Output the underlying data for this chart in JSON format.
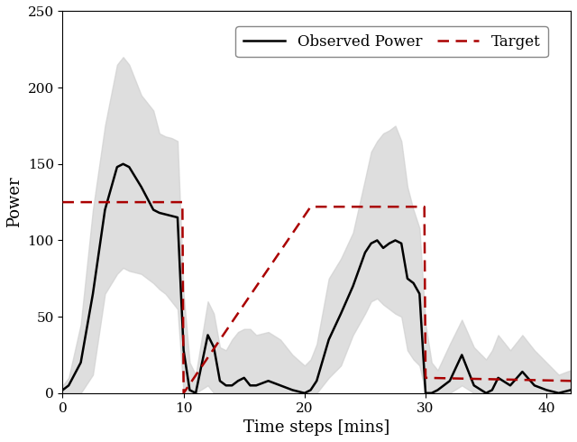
{
  "title": "",
  "xlabel": "Time steps [mins]",
  "ylabel": "Power",
  "xlim": [
    0,
    42
  ],
  "ylim": [
    0,
    250
  ],
  "yticks": [
    0,
    50,
    100,
    150,
    200,
    250
  ],
  "xticks": [
    0,
    10,
    20,
    30,
    40
  ],
  "obs_x": [
    0,
    0.5,
    1.5,
    2.5,
    3.5,
    4.5,
    5.0,
    5.5,
    6.5,
    7.5,
    8.0,
    8.5,
    9.0,
    9.5,
    10.0,
    10.5,
    11.0,
    12.0,
    12.5,
    13.0,
    13.5,
    14.0,
    14.5,
    15.0,
    15.5,
    16.0,
    17.0,
    18.0,
    19.0,
    20.0,
    20.5,
    21.0,
    22.0,
    23.0,
    24.0,
    25.0,
    25.5,
    26.0,
    26.5,
    27.0,
    27.5,
    28.0,
    28.5,
    29.0,
    29.5,
    30.0,
    30.5,
    31.0,
    32.0,
    33.0,
    34.0,
    35.0,
    35.5,
    36.0,
    37.0,
    38.0,
    39.0,
    40.0,
    41.0,
    42.0
  ],
  "obs_y": [
    2,
    5,
    20,
    65,
    120,
    148,
    150,
    148,
    135,
    120,
    118,
    117,
    116,
    115,
    28,
    2,
    0,
    38,
    30,
    8,
    5,
    5,
    8,
    10,
    5,
    5,
    8,
    5,
    2,
    0,
    2,
    8,
    35,
    52,
    70,
    92,
    98,
    100,
    95,
    98,
    100,
    98,
    75,
    72,
    65,
    0,
    0,
    2,
    8,
    25,
    5,
    0,
    2,
    10,
    5,
    14,
    5,
    2,
    0,
    2
  ],
  "obs_upper": [
    5,
    10,
    45,
    120,
    175,
    215,
    220,
    215,
    195,
    185,
    170,
    168,
    167,
    165,
    65,
    20,
    12,
    60,
    52,
    30,
    28,
    35,
    40,
    42,
    42,
    38,
    40,
    35,
    25,
    18,
    22,
    32,
    75,
    88,
    105,
    140,
    158,
    165,
    170,
    172,
    175,
    165,
    135,
    120,
    108,
    45,
    20,
    15,
    32,
    48,
    30,
    22,
    28,
    38,
    28,
    38,
    28,
    20,
    12,
    15
  ],
  "obs_lower": [
    0,
    0,
    0,
    12,
    65,
    78,
    82,
    80,
    78,
    72,
    68,
    65,
    60,
    55,
    0,
    0,
    0,
    5,
    0,
    0,
    0,
    0,
    0,
    0,
    0,
    0,
    0,
    0,
    0,
    0,
    0,
    0,
    10,
    18,
    38,
    52,
    60,
    62,
    58,
    55,
    52,
    50,
    28,
    22,
    18,
    0,
    0,
    0,
    0,
    5,
    0,
    0,
    0,
    0,
    0,
    0,
    0,
    0,
    0,
    0
  ],
  "target_x": [
    0,
    9.9,
    9.9,
    10.0,
    10.0,
    20.5,
    20.5,
    29.9,
    29.9,
    30.0,
    30.0,
    42
  ],
  "target_y": [
    125,
    125,
    125,
    0,
    0,
    122,
    122,
    122,
    122,
    10,
    10,
    8
  ],
  "fill_color": "#d0d0d0",
  "fill_alpha": 0.7,
  "obs_line_color": "#000000",
  "obs_linewidth": 1.8,
  "target_line_color": "#aa0000",
  "target_linewidth": 1.8,
  "legend_fontsize": 12,
  "axis_fontsize": 13,
  "tick_fontsize": 11,
  "figsize": [
    6.4,
    4.9
  ],
  "dpi": 100
}
